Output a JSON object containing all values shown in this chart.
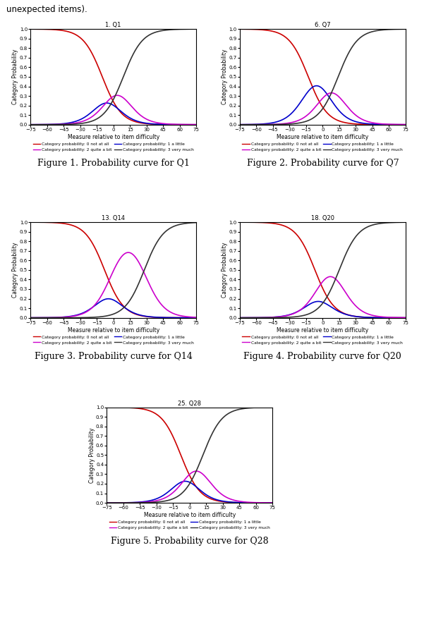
{
  "plots": [
    {
      "title": "1. Q1",
      "b1": -10,
      "b2": -2,
      "b3": 9,
      "a": 0.115
    },
    {
      "title": "6. Q7",
      "b1": -13,
      "b2": 2,
      "b3": 14,
      "a": 0.115
    },
    {
      "title": "13. Q14",
      "b1": -8,
      "b2": -1,
      "b3": 28,
      "a": 0.115
    },
    {
      "title": "18. Q20",
      "b1": -7,
      "b2": -1,
      "b3": 15,
      "a": 0.115
    },
    {
      "title": "25. Q28",
      "b1": -8,
      "b2": 0,
      "b3": 12,
      "a": 0.115
    }
  ],
  "captions": [
    "Figure 1. Probability curve for Q1",
    "Figure 2. Probability curve for Q7",
    "Figure 3. Probability curve for Q14",
    "Figure 4. Probability curve for Q20",
    "Figure 5. Probability curve for Q28"
  ],
  "colors": [
    "#cc0000",
    "#0000cc",
    "#cc00cc",
    "#333333"
  ],
  "legend_labels": [
    "Category probability: 0 not at all",
    "Category probability: 1 a little",
    "Category probability: 2 quite a bit",
    "Category probability: 3 very much"
  ],
  "xlabel": "Measure relative to item difficulty",
  "ylabel": "Category Probability",
  "xlim": [
    -75,
    75
  ],
  "ylim": [
    0,
    1
  ],
  "xticks": [
    -75,
    -60,
    -45,
    -30,
    -15,
    0,
    15,
    30,
    45,
    60,
    75
  ],
  "yticks": [
    0,
    0.1,
    0.2,
    0.3,
    0.4,
    0.5,
    0.6,
    0.7,
    0.8,
    0.9,
    1
  ],
  "line_width": 1.2,
  "fig_width": 6.18,
  "fig_height": 8.75,
  "top_text": "unexpected items).",
  "caption_fontsize": 9.0,
  "title_fontsize": 6.0,
  "tick_fontsize": 5.0,
  "label_fontsize": 5.5,
  "legend_fontsize": 4.2
}
